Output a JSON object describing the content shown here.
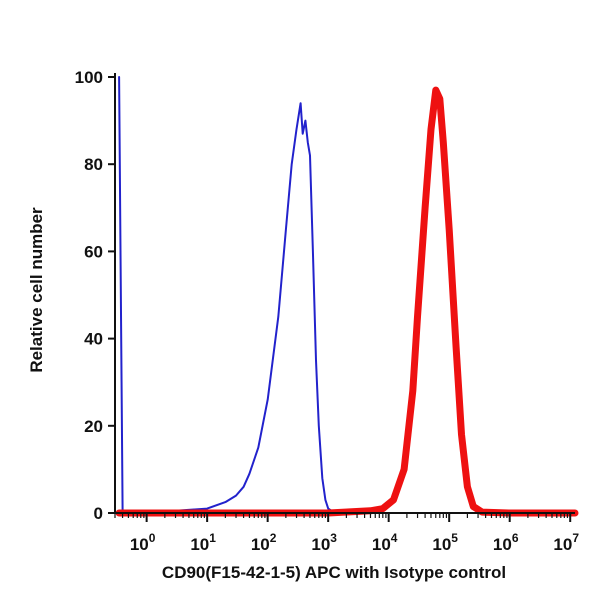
{
  "chart_data": {
    "type": "area",
    "xlabel": "CD90(F15-42-1-5) APC with Isotype control",
    "ylabel": "Relative cell number",
    "x_scale": "log",
    "xlim": [
      0.3,
      12000000
    ],
    "ylim": [
      0,
      100
    ],
    "y_ticks": [
      0,
      20,
      40,
      60,
      80,
      100
    ],
    "x_ticks": [
      {
        "value": 1,
        "base": "10",
        "exp": "0"
      },
      {
        "value": 10,
        "base": "10",
        "exp": "1"
      },
      {
        "value": 100,
        "base": "10",
        "exp": "2"
      },
      {
        "value": 1000,
        "base": "10",
        "exp": "3"
      },
      {
        "value": 10000,
        "base": "10",
        "exp": "4"
      },
      {
        "value": 100000,
        "base": "10",
        "exp": "5"
      },
      {
        "value": 1000000,
        "base": "10",
        "exp": "6"
      },
      {
        "value": 10000000,
        "base": "10",
        "exp": "7"
      }
    ],
    "grid": false,
    "series": [
      {
        "color": "#2222cc",
        "stroke_width": 2,
        "points": [
          [
            0.35,
            100
          ],
          [
            0.37,
            60
          ],
          [
            0.4,
            0.5
          ],
          [
            1,
            0.3
          ],
          [
            3,
            0.5
          ],
          [
            10,
            1
          ],
          [
            20,
            2.5
          ],
          [
            30,
            4
          ],
          [
            40,
            6
          ],
          [
            50,
            9
          ],
          [
            70,
            15
          ],
          [
            100,
            26
          ],
          [
            150,
            45
          ],
          [
            200,
            65
          ],
          [
            250,
            80
          ],
          [
            300,
            88
          ],
          [
            350,
            94
          ],
          [
            380,
            87
          ],
          [
            420,
            90
          ],
          [
            460,
            85
          ],
          [
            500,
            82
          ],
          [
            560,
            60
          ],
          [
            630,
            35
          ],
          [
            700,
            20
          ],
          [
            800,
            8
          ],
          [
            900,
            3
          ],
          [
            1000,
            1
          ],
          [
            1200,
            0.3
          ],
          [
            3000,
            0
          ]
        ]
      },
      {
        "color": "#ee1111",
        "stroke_width": 7,
        "points": [
          [
            0.35,
            0
          ],
          [
            100,
            0
          ],
          [
            1000,
            0
          ],
          [
            5000,
            0.5
          ],
          [
            8000,
            1
          ],
          [
            12000,
            3
          ],
          [
            18000,
            10
          ],
          [
            25000,
            28
          ],
          [
            30000,
            45
          ],
          [
            40000,
            70
          ],
          [
            50000,
            88
          ],
          [
            60000,
            97
          ],
          [
            70000,
            95
          ],
          [
            80000,
            85
          ],
          [
            100000,
            65
          ],
          [
            130000,
            38
          ],
          [
            160000,
            18
          ],
          [
            200000,
            6
          ],
          [
            250000,
            1.5
          ],
          [
            350000,
            0.2
          ],
          [
            1000000,
            0
          ],
          [
            12000000,
            0
          ]
        ]
      }
    ]
  }
}
